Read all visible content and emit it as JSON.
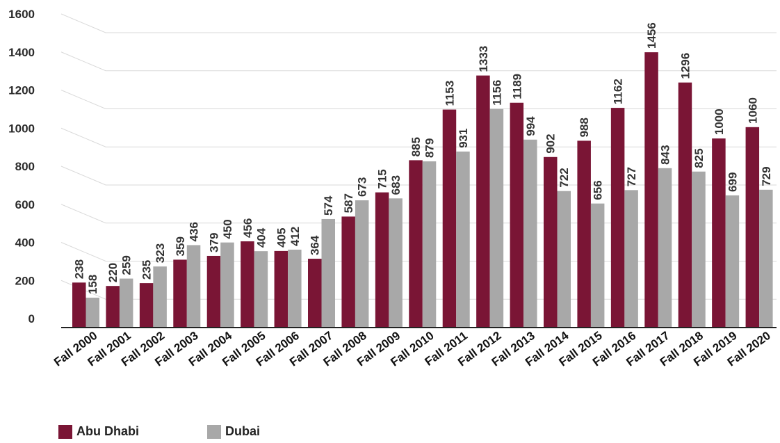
{
  "chart_data": {
    "type": "bar",
    "categories": [
      "Fall 2000",
      "Fall 2001",
      "Fall 2002",
      "Fall 2003",
      "Fall 2004",
      "Fall 2005",
      "Fall 2006",
      "Fall 2007",
      "Fall 2008",
      "Fall 2009",
      "Fall 2010",
      "Fall 2011",
      "Fall 2012",
      "Fall 2013",
      "Fall 2014",
      "Fall 2015",
      "Fall 2016",
      "Fall 2017",
      "Fall 2018",
      "Fall 2019",
      "Fall 2020"
    ],
    "series": [
      {
        "name": "Abu Dhabi",
        "color": "#7a1535",
        "values": [
          238,
          220,
          235,
          359,
          379,
          456,
          405,
          364,
          587,
          715,
          885,
          1153,
          1333,
          1189,
          902,
          988,
          1162,
          1456,
          1296,
          1000,
          1060
        ]
      },
      {
        "name": "Dubai",
        "color": "#a8a8a8",
        "values": [
          158,
          259,
          323,
          436,
          450,
          404,
          412,
          574,
          673,
          683,
          879,
          931,
          1156,
          994,
          722,
          656,
          727,
          843,
          825,
          699,
          729
        ]
      }
    ],
    "yticks": [
      0,
      200,
      400,
      600,
      800,
      1000,
      1200,
      1400,
      1600
    ],
    "ylim": [
      -80,
      1600
    ],
    "grid": true,
    "legend_position": "bottom-left",
    "title": "",
    "xlabel": "",
    "ylabel": ""
  }
}
